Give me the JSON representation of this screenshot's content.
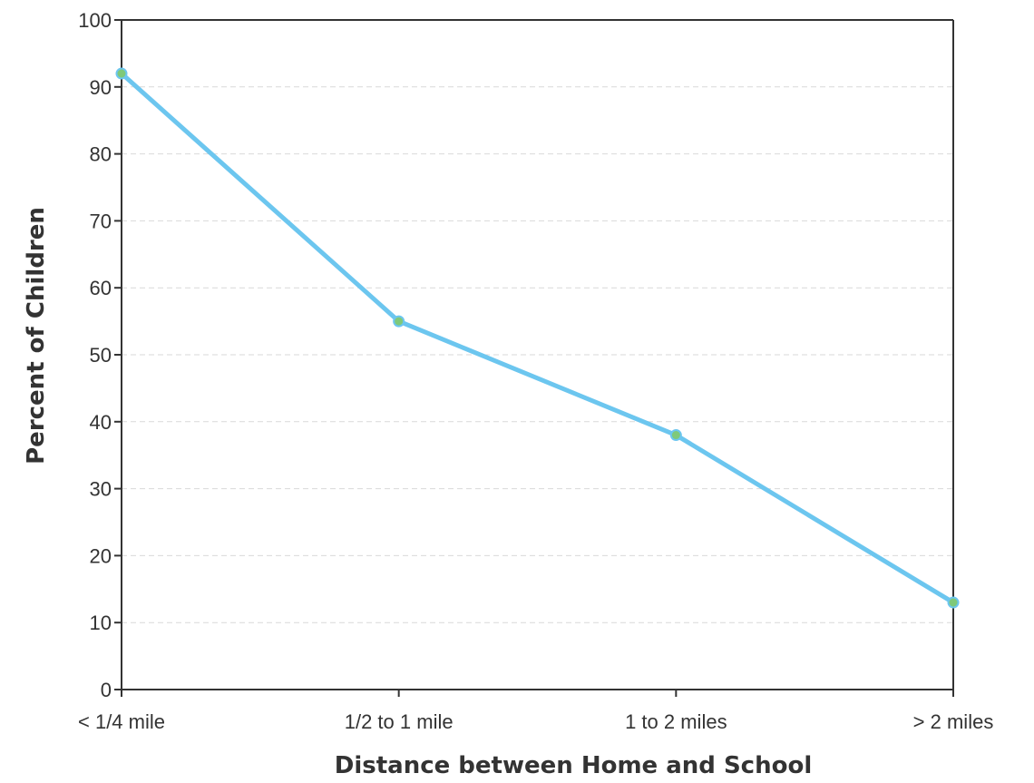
{
  "chart_data": {
    "type": "line",
    "title": "",
    "xlabel": "Distance between Home and School",
    "ylabel": "Percent of Children",
    "categories": [
      "< 1/4 mile",
      "1/2 to 1 mile",
      "1 to 2 miles",
      "> 2 miles"
    ],
    "series": [
      {
        "values": [
          92,
          55,
          38,
          13
        ],
        "color": "#6cc6ef",
        "marker_fill": "#7fc97a"
      }
    ],
    "ylim": [
      0,
      100
    ],
    "yticks": [
      0,
      10,
      20,
      30,
      40,
      50,
      60,
      70,
      80,
      90,
      100
    ],
    "grid": "horizontal dashed",
    "legend": "none"
  }
}
